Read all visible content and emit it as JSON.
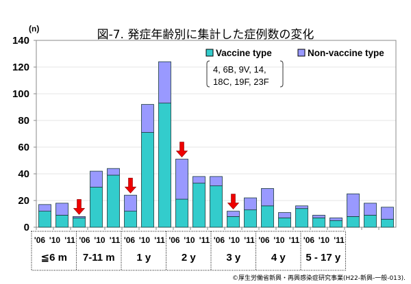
{
  "chart_data": {
    "type": "bar",
    "stacked": true,
    "title": "図-7. 発症年齢別に集計した症例数の変化",
    "ylabel": "(n)",
    "ylim": [
      0,
      140
    ],
    "yticks": [
      0,
      20,
      40,
      60,
      80,
      100,
      120,
      140
    ],
    "grid": true,
    "legend_position": "top-right",
    "groups": [
      "≦6 m",
      "7-11 m",
      "1 y",
      "2 y",
      "3 y",
      "4 y",
      "5 - 17 y"
    ],
    "years": [
      "'06",
      "'10",
      "'11"
    ],
    "series": [
      {
        "name": "Vaccine type",
        "color": "#33CCCC",
        "values": [
          12,
          9,
          7,
          30,
          39,
          12,
          71,
          93,
          21,
          33,
          31,
          8,
          13,
          16,
          7,
          14,
          7,
          5,
          8,
          9,
          6
        ]
      },
      {
        "name": "Non-vaccine type",
        "color": "#9999FF",
        "values": [
          5,
          9,
          1,
          12,
          5,
          12,
          21,
          31,
          30,
          5,
          7,
          4,
          9,
          13,
          4,
          2,
          2,
          2,
          17,
          9,
          9
        ]
      }
    ],
    "annotation": [
      "4, 6B, 9V, 14,",
      "18C, 19F, 23F"
    ],
    "arrows_at": [
      "≦6 m '11",
      "7-11 m '11",
      "1 y '11",
      "2 y '11"
    ],
    "footer": "©厚生労働省新興・再興感染症研究事業(H22-新興-一般-013)."
  }
}
